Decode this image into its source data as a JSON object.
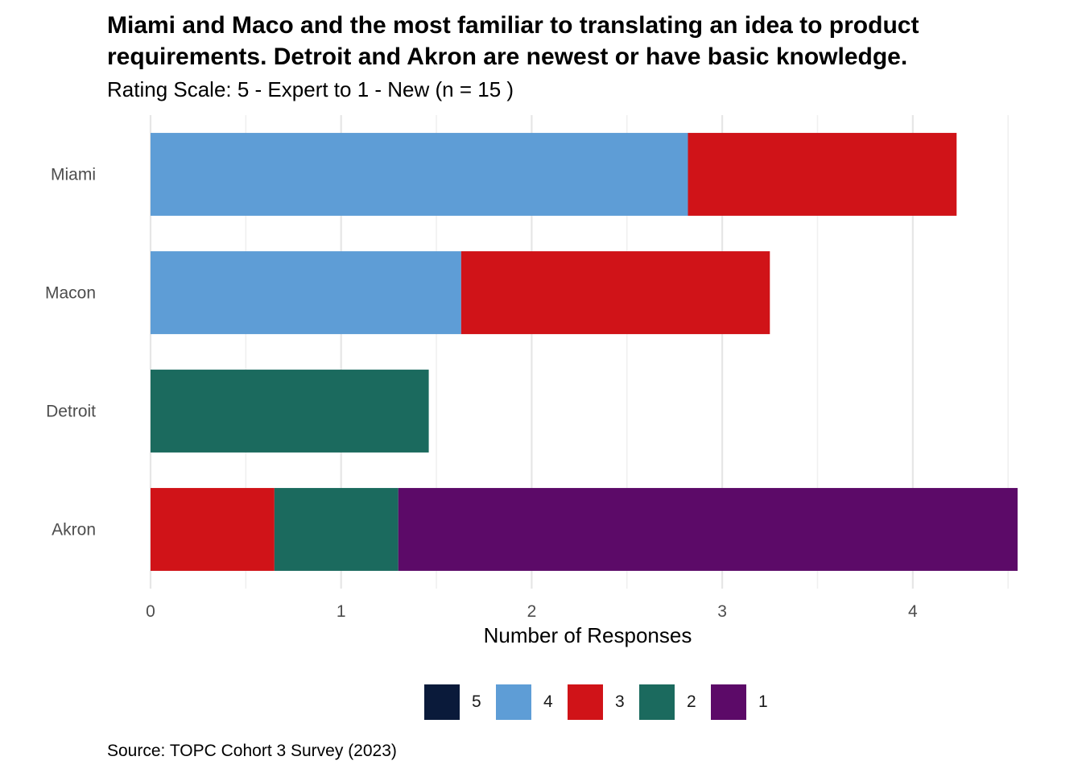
{
  "chart_data": {
    "type": "bar",
    "orientation": "horizontal",
    "stacked": true,
    "title_lines": [
      "Miami and Maco and the most familiar to translating an idea to product",
      "requirements. Detroit and Akron are newest or have basic knowledge."
    ],
    "subtitle": "Rating Scale: 5 - Expert to 1 - New (n = 15 )",
    "xlabel": "Number of Responses",
    "ylabel": "",
    "caption": "Source: TOPC Cohort 3 Survey (2023)",
    "categories": [
      "Miami",
      "Macon",
      "Detroit",
      "Akron"
    ],
    "x_ticks": [
      "0",
      "1",
      "2",
      "3",
      "4"
    ],
    "xlim": [
      0,
      4.55
    ],
    "grid": true,
    "legend_position": "bottom",
    "series": [
      {
        "name": "5",
        "color": "#0a1a3a",
        "values": [
          0,
          0,
          0,
          0
        ]
      },
      {
        "name": "4",
        "color": "#5e9dd6",
        "values": [
          2.82,
          1.63,
          0,
          0
        ]
      },
      {
        "name": "3",
        "color": "#d01318",
        "values": [
          1.41,
          1.62,
          0,
          0.65
        ]
      },
      {
        "name": "2",
        "color": "#1b6a5e",
        "values": [
          0,
          0,
          1.46,
          0.65
        ]
      },
      {
        "name": "1",
        "color": "#5c0a68",
        "values": [
          0,
          0,
          0,
          3.25
        ]
      }
    ]
  }
}
